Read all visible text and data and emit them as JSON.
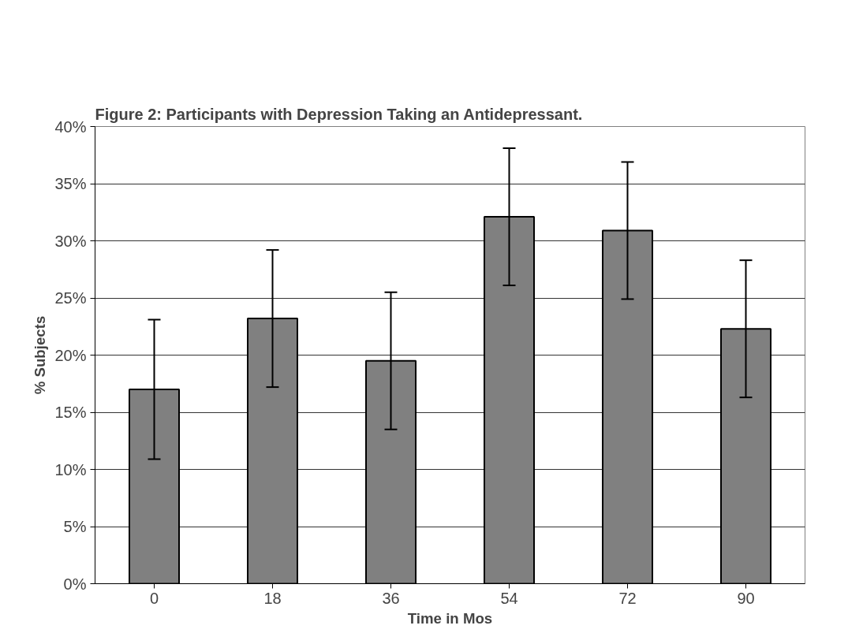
{
  "chart_data": {
    "type": "bar",
    "title": "Figure 2: Participants with Depression Taking an Antidepressant.",
    "xlabel": "Time in Mos",
    "ylabel": "% Subjects",
    "categories": [
      "0",
      "18",
      "36",
      "54",
      "72",
      "90"
    ],
    "values": [
      17.0,
      23.2,
      19.5,
      32.1,
      30.9,
      22.3
    ],
    "errors": [
      6.1,
      6.0,
      6.0,
      6.0,
      6.0,
      6.0
    ],
    "color": "#808080",
    "ylim": [
      0,
      40
    ],
    "yticks": [
      {
        "value": 0,
        "label": "0%"
      },
      {
        "value": 5,
        "label": "5%"
      },
      {
        "value": 10,
        "label": "10%"
      },
      {
        "value": 15,
        "label": "15%"
      },
      {
        "value": 20,
        "label": "20%"
      },
      {
        "value": 25,
        "label": "25%"
      },
      {
        "value": 30,
        "label": "30%"
      },
      {
        "value": 35,
        "label": "35%"
      },
      {
        "value": 40,
        "label": "40%"
      }
    ],
    "grid": "y"
  }
}
